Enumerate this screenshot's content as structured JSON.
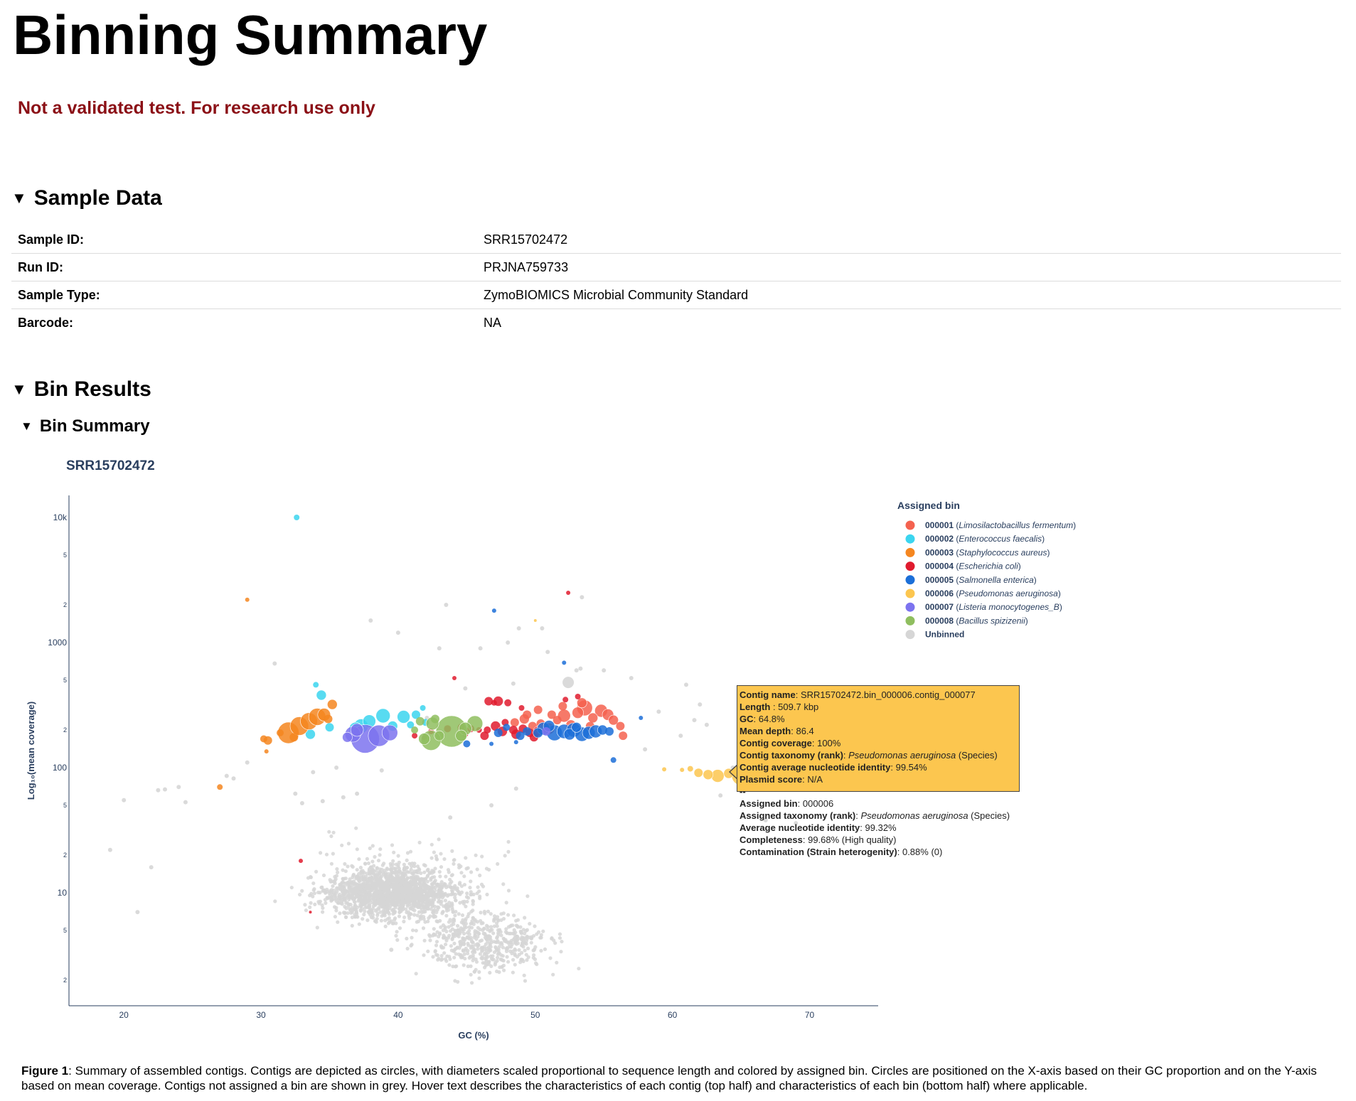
{
  "page": {
    "title": "Binning Summary",
    "warning": "Not a validated test. For research use only"
  },
  "sample_section": {
    "heading": "Sample Data",
    "rows": [
      {
        "key": "Sample ID:",
        "value": "SRR15702472"
      },
      {
        "key": "Run ID:",
        "value": "PRJNA759733"
      },
      {
        "key": "Sample Type:",
        "value": "ZymoBIOMICS Microbial Community Standard"
      },
      {
        "key": "Barcode:",
        "value": "NA"
      }
    ]
  },
  "bin_results": {
    "heading": "Bin Results",
    "subheading": "Bin Summary"
  },
  "chart_data": {
    "type": "scatter",
    "title": "SRR15702472",
    "xlabel": "GC (%)",
    "ylabel": "Log₁₀(mean coverage)",
    "x_ticks": [
      "20",
      "30",
      "40",
      "50",
      "60",
      "70"
    ],
    "xlim": [
      16,
      75
    ],
    "y_scale": "log",
    "ylim": [
      1.25,
      15000
    ],
    "y_major_ticks": [
      {
        "value": 10,
        "label": "10"
      },
      {
        "value": 100,
        "label": "100"
      },
      {
        "value": 1000,
        "label": "1000"
      },
      {
        "value": 10000,
        "label": "10k"
      }
    ],
    "y_minor_ticks": [
      {
        "value": 2,
        "label": "2"
      },
      {
        "value": 5,
        "label": "5"
      },
      {
        "value": 20,
        "label": "2"
      },
      {
        "value": 50,
        "label": "5"
      },
      {
        "value": 200,
        "label": "2"
      },
      {
        "value": 500,
        "label": "5"
      },
      {
        "value": 2000,
        "label": "2"
      },
      {
        "value": 5000,
        "label": "5"
      }
    ],
    "grid": false,
    "legend_position": "right",
    "legend_title": "Assigned bin",
    "series": [
      {
        "id": "000001",
        "name": "Limosilactobacillus fermentum",
        "color": "#f4624f",
        "points": [
          [
            48.5,
            230,
            6
          ],
          [
            49.2,
            245,
            7
          ],
          [
            49.8,
            215,
            6
          ],
          [
            50.4,
            225,
            6
          ],
          [
            51.0,
            205,
            8
          ],
          [
            51.6,
            240,
            6
          ],
          [
            52.1,
            260,
            9
          ],
          [
            52.6,
            220,
            7
          ],
          [
            53.1,
            275,
            8
          ],
          [
            53.6,
            300,
            11
          ],
          [
            54.2,
            250,
            7
          ],
          [
            54.8,
            285,
            9
          ],
          [
            55.3,
            265,
            8
          ],
          [
            55.7,
            240,
            7
          ],
          [
            56.2,
            215,
            6
          ],
          [
            56.4,
            180,
            6
          ],
          [
            53.4,
            330,
            7
          ],
          [
            52.0,
            310,
            6
          ],
          [
            50.2,
            290,
            6
          ],
          [
            49.4,
            265,
            6
          ],
          [
            54.0,
            215,
            6
          ],
          [
            51.2,
            265,
            6
          ]
        ]
      },
      {
        "id": "000002",
        "name": "Enterococcus faecalis",
        "color": "#3bd5ef",
        "points": [
          [
            32.6,
            10000,
            4
          ],
          [
            34.4,
            380,
            7
          ],
          [
            34.0,
            460,
            4
          ],
          [
            35.0,
            210,
            6
          ],
          [
            38.9,
            260,
            10
          ],
          [
            37.9,
            235,
            9
          ],
          [
            37.3,
            215,
            10
          ],
          [
            36.9,
            205,
            9
          ],
          [
            40.4,
            255,
            9
          ],
          [
            41.3,
            265,
            6
          ],
          [
            40.9,
            220,
            5
          ],
          [
            33.6,
            185,
            7
          ],
          [
            39.6,
            215,
            7
          ],
          [
            42.0,
            230,
            5
          ],
          [
            41.8,
            300,
            4
          ]
        ]
      },
      {
        "id": "000003",
        "name": "Staphylococcus aureus",
        "color": "#f58620",
        "points": [
          [
            32.0,
            190,
            15
          ],
          [
            32.8,
            215,
            13
          ],
          [
            33.5,
            235,
            12
          ],
          [
            34.1,
            255,
            12
          ],
          [
            34.6,
            265,
            9
          ],
          [
            30.5,
            165,
            6
          ],
          [
            30.2,
            170,
            5
          ],
          [
            35.2,
            320,
            7
          ],
          [
            34.9,
            245,
            6
          ],
          [
            31.4,
            190,
            5
          ],
          [
            32.4,
            175,
            6
          ],
          [
            27.0,
            70,
            4
          ],
          [
            29.0,
            2200,
            3
          ],
          [
            30.4,
            135,
            3
          ]
        ]
      },
      {
        "id": "000004",
        "name": "Escherichia coli",
        "color": "#e01b2e",
        "points": [
          [
            46.6,
            340,
            6
          ],
          [
            47.3,
            340,
            7
          ],
          [
            47.1,
            215,
            7
          ],
          [
            47.6,
            195,
            7
          ],
          [
            48.4,
            200,
            6
          ],
          [
            48.6,
            185,
            7
          ],
          [
            49.1,
            205,
            6
          ],
          [
            49.6,
            190,
            6
          ],
          [
            50.2,
            195,
            7
          ],
          [
            49.9,
            175,
            6
          ],
          [
            46.5,
            200,
            5
          ],
          [
            46.3,
            180,
            6
          ],
          [
            47.8,
            230,
            5
          ],
          [
            48.0,
            330,
            5
          ],
          [
            49.0,
            300,
            4
          ],
          [
            44.6,
            210,
            5
          ],
          [
            45.3,
            205,
            5
          ],
          [
            43.6,
            205,
            5
          ],
          [
            42.4,
            195,
            4
          ],
          [
            41.9,
            175,
            4
          ],
          [
            41.2,
            180,
            4
          ],
          [
            44.1,
            520,
            3
          ],
          [
            47.0,
            330,
            4
          ],
          [
            32.9,
            18,
            3
          ],
          [
            33.6,
            7,
            2
          ],
          [
            52.4,
            2500,
            3
          ],
          [
            53.1,
            370,
            4
          ],
          [
            52.2,
            350,
            4
          ],
          [
            45.9,
            200,
            4
          ],
          [
            44.9,
            185,
            4
          ]
        ]
      },
      {
        "id": "000005",
        "name": "Salmonella enterica",
        "color": "#1c6fd8",
        "points": [
          [
            50.6,
            205,
            9
          ],
          [
            51.4,
            190,
            11
          ],
          [
            52.1,
            195,
            10
          ],
          [
            52.8,
            200,
            10
          ],
          [
            53.4,
            185,
            10
          ],
          [
            53.9,
            190,
            9
          ],
          [
            54.4,
            195,
            9
          ],
          [
            54.9,
            200,
            7
          ],
          [
            51.0,
            215,
            8
          ],
          [
            50.2,
            190,
            7
          ],
          [
            49.4,
            195,
            6
          ],
          [
            48.9,
            180,
            6
          ],
          [
            47.3,
            190,
            6
          ],
          [
            47.9,
            210,
            5
          ],
          [
            53.0,
            210,
            7
          ],
          [
            55.4,
            195,
            6
          ],
          [
            47.0,
            1800,
            3
          ],
          [
            52.1,
            690,
            3
          ],
          [
            55.7,
            115,
            4
          ],
          [
            46.8,
            155,
            3
          ],
          [
            57.7,
            250,
            3
          ],
          [
            52.5,
            185,
            8
          ],
          [
            45.0,
            155,
            5
          ],
          [
            48.6,
            160,
            3
          ]
        ]
      },
      {
        "id": "000006",
        "name": "Pseudomonas aeruginosa",
        "color": "#fcc64f",
        "points": [
          [
            65.0,
            86,
            13
          ],
          [
            64.1,
            90,
            7
          ],
          [
            63.3,
            86,
            9
          ],
          [
            62.6,
            88,
            7
          ],
          [
            61.9,
            91,
            6
          ],
          [
            61.3,
            98,
            4
          ],
          [
            60.7,
            96,
            3
          ],
          [
            59.4,
            97,
            3
          ],
          [
            50.0,
            1500,
            2
          ]
        ]
      },
      {
        "id": "000007",
        "name": "Listeria monocytogenes_B",
        "color": "#7c73ef",
        "points": [
          [
            37.6,
            170,
            20
          ],
          [
            36.7,
            185,
            11
          ],
          [
            38.6,
            180,
            15
          ],
          [
            39.4,
            190,
            11
          ],
          [
            37.0,
            200,
            9
          ],
          [
            36.3,
            175,
            7
          ],
          [
            50.8,
            195,
            6
          ]
        ]
      },
      {
        "id": "000008",
        "name": "Bacillus spizizenii",
        "color": "#8fbe5f",
        "points": [
          [
            43.9,
            195,
            22
          ],
          [
            42.4,
            165,
            14
          ],
          [
            41.9,
            170,
            8
          ],
          [
            42.5,
            225,
            9
          ],
          [
            45.6,
            225,
            11
          ],
          [
            44.9,
            205,
            9
          ],
          [
            44.6,
            180,
            8
          ],
          [
            43.0,
            180,
            7
          ],
          [
            41.6,
            235,
            6
          ],
          [
            42.7,
            245,
            6
          ],
          [
            41.2,
            200,
            5
          ]
        ]
      },
      {
        "id": "Unbinned",
        "name": "",
        "color": "#d6d6d6",
        "points": [
          [
            52.4,
            480,
            8
          ],
          [
            38.0,
            1500,
            3
          ],
          [
            40.0,
            1200,
            3
          ],
          [
            43.0,
            900,
            3
          ],
          [
            46.0,
            900,
            3
          ],
          [
            48.0,
            1000,
            3
          ],
          [
            50.5,
            1300,
            3
          ],
          [
            48.8,
            1300,
            3
          ],
          [
            53.0,
            600,
            3
          ],
          [
            55.0,
            600,
            3
          ],
          [
            57.0,
            520,
            3
          ],
          [
            59.0,
            280,
            3
          ],
          [
            61.0,
            460,
            3
          ],
          [
            61.6,
            240,
            3
          ],
          [
            62.5,
            220,
            3
          ],
          [
            66.5,
            140,
            3
          ],
          [
            69.5,
            75,
            3
          ],
          [
            24.0,
            70,
            3
          ],
          [
            22.5,
            66,
            3
          ],
          [
            23.0,
            67,
            3
          ],
          [
            20.0,
            55,
            3
          ],
          [
            27.5,
            86,
            3
          ],
          [
            29.0,
            110,
            3
          ],
          [
            36.0,
            58,
            3
          ],
          [
            35.5,
            100,
            3
          ],
          [
            37.0,
            62,
            3
          ],
          [
            19.0,
            22,
            3
          ],
          [
            21.0,
            7,
            3
          ],
          [
            22.0,
            16,
            3
          ],
          [
            39.5,
            3.5,
            3
          ],
          [
            32.5,
            62,
            3
          ],
          [
            33.0,
            52,
            3
          ],
          [
            28.0,
            82,
            3
          ],
          [
            34.5,
            54,
            3
          ],
          [
            24.5,
            53,
            3
          ],
          [
            53.4,
            2300,
            3
          ],
          [
            43.5,
            2000,
            3
          ],
          [
            46.8,
            50,
            3
          ],
          [
            48.6,
            68,
            3
          ],
          [
            43.8,
            40,
            3
          ],
          [
            66.8,
            38,
            3
          ],
          [
            69.0,
            36,
            3
          ],
          [
            63.5,
            60,
            3
          ],
          [
            70.0,
            100,
            3
          ],
          [
            60.6,
            180,
            3
          ],
          [
            62.0,
            320,
            3
          ],
          [
            58.0,
            140,
            3
          ],
          [
            64.4,
            100,
            3
          ],
          [
            50.9,
            840,
            3
          ],
          [
            53.3,
            620,
            3
          ],
          [
            44.9,
            430,
            3
          ],
          [
            48.4,
            470,
            3
          ],
          [
            42.1,
            250,
            3
          ],
          [
            31.0,
            680,
            3
          ],
          [
            38.8,
            95,
            3
          ],
          [
            33.8,
            92,
            3
          ]
        ]
      }
    ],
    "tooltip": {
      "rows": [
        {
          "label": "Contig name",
          "sep": ": ",
          "value": "SRR15702472.bin_000006.contig_000077"
        },
        {
          "label": "Length",
          "sep": " : ",
          "value": "509.7 kbp"
        },
        {
          "label": "GC",
          "sep": ": ",
          "value": "64.8%"
        },
        {
          "label": "Mean depth",
          "sep": ": ",
          "value": "86.4"
        },
        {
          "label": "Contig coverage",
          "sep": ": ",
          "value": "100%"
        },
        {
          "label": "Contig taxonomy (rank)",
          "sep": ": ",
          "italic": "Pseudomonas aeruginosa",
          "value": " (Species)"
        },
        {
          "label": "Contig average nucleotide identity",
          "sep": ": ",
          "value": "99.54%"
        },
        {
          "label": "Plasmid score",
          "sep": ": ",
          "value": "N/A"
        },
        {
          "label": "--",
          "sep": "",
          "value": ""
        },
        {
          "label": "Assigned bin",
          "sep": ": ",
          "value": "000006"
        },
        {
          "label": "Assigned taxonomy (rank)",
          "sep": ": ",
          "italic": "Pseudomonas aeruginosa",
          "value": " (Species)"
        },
        {
          "label": "Average nucleotide identity",
          "sep": ": ",
          "value": "99.32%"
        },
        {
          "label": "Completeness",
          "sep": ": ",
          "value": "99.68% (High quality)"
        },
        {
          "label": "Contamination (Strain heterogenity)",
          "sep": ": ",
          "value": "0.88% (0)"
        }
      ]
    }
  },
  "caption": {
    "label": "Figure 1",
    "text": ": Summary of assembled contigs. Contigs are depicted as circles, with diameters scaled proportional to sequence length and colored by assigned bin. Circles are positioned on the X-axis based on their GC proportion and on the Y-axis based on mean coverage. Contigs not assigned a bin are shown in grey. Hover text describes the characteristics of each contig (top half) and characteristics of each bin (bottom half) where applicable."
  }
}
